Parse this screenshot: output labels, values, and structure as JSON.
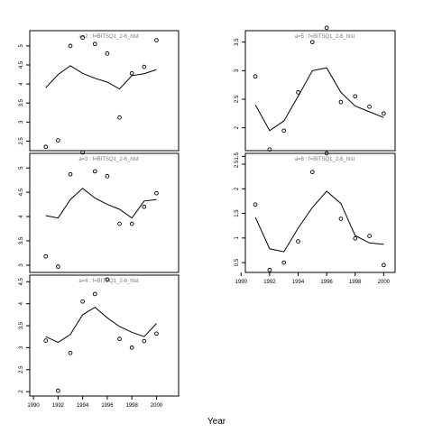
{
  "figure": {
    "xlabel": "Year"
  },
  "chart_data": [
    {
      "type": "line",
      "title": "a=2 : f=BITSQ1_2-6_hist",
      "xlim": [
        1989.7,
        2001.8
      ],
      "ylim": [
        2.25,
        5.4
      ],
      "xticks": [],
      "yticks": [
        2.5,
        3.0,
        3.5,
        4.0,
        4.5,
        5.0
      ],
      "series": [
        {
          "style": "line",
          "x": [
            1991,
            1992,
            1993,
            1994,
            1995,
            1996,
            1997,
            1998,
            1999,
            2000
          ],
          "y": [
            3.9,
            4.25,
            4.48,
            4.28,
            4.15,
            4.05,
            3.87,
            4.22,
            4.27,
            4.38
          ]
        },
        {
          "style": "points",
          "x": [
            1991,
            1992,
            1993,
            1994,
            1995,
            1996,
            1997,
            1998,
            1999,
            2000
          ],
          "y": [
            2.35,
            2.52,
            5.0,
            5.22,
            5.05,
            4.8,
            3.12,
            4.28,
            4.45,
            5.15
          ]
        }
      ]
    },
    {
      "type": "line",
      "title": "a=3 : f=BITSQ1_2-6_hist",
      "xlim": [
        1989.7,
        2001.8
      ],
      "ylim": [
        2.85,
        5.3
      ],
      "xticks": [],
      "yticks": [
        3.0,
        3.5,
        4.0,
        4.5,
        5.0
      ],
      "series": [
        {
          "style": "line",
          "x": [
            1991,
            1992,
            1993,
            1994,
            1995,
            1996,
            1997,
            1998,
            1999,
            2000
          ],
          "y": [
            4.02,
            3.97,
            4.35,
            4.58,
            4.38,
            4.25,
            4.15,
            3.97,
            4.32,
            4.35
          ]
        },
        {
          "style": "points",
          "x": [
            1991,
            1992,
            1993,
            1994,
            1995,
            1996,
            1997,
            1998,
            1999,
            2000
          ],
          "y": [
            3.18,
            2.97,
            4.87,
            5.32,
            4.93,
            4.83,
            3.85,
            3.85,
            4.2,
            4.48
          ]
        }
      ]
    },
    {
      "type": "line",
      "title": "a=4 : f=BITSQ1_2-6_hist",
      "xlim": [
        1989.7,
        2001.8
      ],
      "ylim": [
        1.9,
        4.65
      ],
      "xticks": [
        1990,
        1992,
        1994,
        1996,
        1998,
        2000
      ],
      "yticks": [
        2.0,
        2.5,
        3.0,
        3.5,
        4.0,
        4.5
      ],
      "series": [
        {
          "style": "line",
          "x": [
            1991,
            1992,
            1993,
            1994,
            1995,
            1996,
            1997,
            1998,
            1999,
            2000
          ],
          "y": [
            3.25,
            3.12,
            3.3,
            3.75,
            3.92,
            3.68,
            3.48,
            3.35,
            3.25,
            3.55
          ]
        },
        {
          "style": "points",
          "x": [
            1991,
            1992,
            1993,
            1994,
            1995,
            1996,
            1997,
            1998,
            1999,
            2000
          ],
          "y": [
            3.16,
            2.02,
            2.88,
            4.05,
            4.22,
            4.55,
            3.2,
            3.0,
            3.15,
            3.32
          ]
        }
      ]
    },
    {
      "type": "line",
      "title": "a=5 : f=BITSQ1_2-6_hist",
      "xlim": [
        1990.3,
        2000.8
      ],
      "ylim": [
        1.6,
        3.7
      ],
      "xticks": [],
      "yticks": [
        1.5,
        2.0,
        2.5,
        3.0,
        3.5
      ],
      "series": [
        {
          "style": "line",
          "x": [
            1991,
            1992,
            1993,
            1994,
            1995,
            1996,
            1997,
            1998,
            1999,
            2000
          ],
          "y": [
            2.4,
            1.95,
            2.12,
            2.55,
            3.0,
            3.05,
            2.62,
            2.38,
            2.28,
            2.18
          ]
        },
        {
          "style": "points",
          "x": [
            1991,
            1992,
            1993,
            1994,
            1995,
            1996,
            1997,
            1998,
            1999,
            2000
          ],
          "y": [
            2.9,
            1.62,
            1.95,
            2.62,
            3.5,
            3.75,
            2.45,
            2.55,
            2.37,
            2.25
          ]
        }
      ]
    },
    {
      "type": "line",
      "title": "a=6 : f=BITSQ1_2-6_hist",
      "xlim": [
        1990.3,
        2000.8
      ],
      "ylim": [
        0.3,
        2.72
      ],
      "xticks": [
        1990,
        1992,
        1994,
        1996,
        1998,
        2000
      ],
      "yticks": [
        0.5,
        1.0,
        1.5,
        2.0,
        2.5
      ],
      "series": [
        {
          "style": "line",
          "x": [
            1991,
            1992,
            1993,
            1994,
            1995,
            1996,
            1997,
            1998,
            1999,
            2000
          ],
          "y": [
            1.42,
            0.78,
            0.72,
            1.2,
            1.62,
            1.95,
            1.7,
            1.05,
            0.9,
            0.87
          ]
        },
        {
          "style": "points",
          "x": [
            1991,
            1992,
            1993,
            1994,
            1995,
            1996,
            1997,
            1998,
            1999,
            2000
          ],
          "y": [
            1.68,
            0.35,
            0.5,
            0.93,
            2.34,
            2.72,
            1.39,
            0.99,
            1.04,
            0.45
          ]
        }
      ]
    }
  ]
}
